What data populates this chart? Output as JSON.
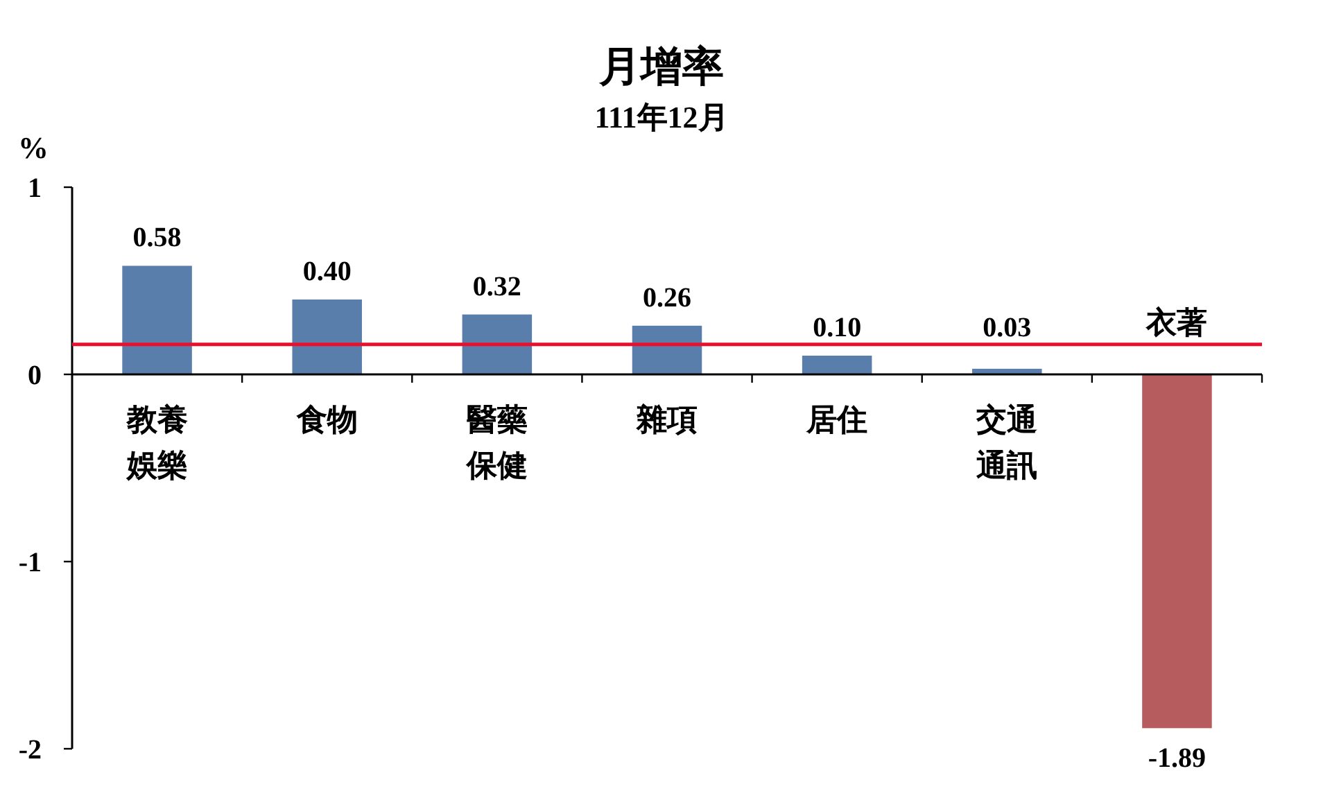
{
  "chart_data": {
    "type": "bar",
    "title": "月增率",
    "subtitle": "111年12月",
    "ylabel": "%",
    "categories": [
      "教養娛樂",
      "食物",
      "醫藥保健",
      "雜項",
      "居住",
      "交通通訊",
      "衣著"
    ],
    "values": [
      0.58,
      0.4,
      0.32,
      0.26,
      0.1,
      0.03,
      -1.89
    ],
    "value_labels": [
      "0.58",
      "0.40",
      "0.32",
      "0.26",
      "0.10",
      "0.03",
      "-1.89"
    ],
    "colors": [
      "#5a7eab",
      "#5a7eab",
      "#5a7eab",
      "#5a7eab",
      "#5a7eab",
      "#5a7eab",
      "#b65c5e"
    ],
    "ylim": [
      -2,
      1
    ],
    "yticks": [
      -2,
      -1,
      0,
      1
    ],
    "ref_lines": [
      {
        "axis": "y",
        "value": 0.16,
        "color": "#e8102c"
      }
    ]
  }
}
